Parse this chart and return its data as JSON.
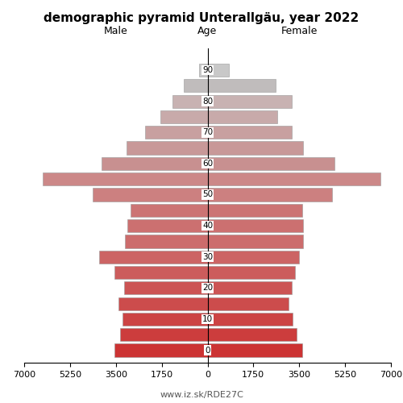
{
  "title": "demographic pyramid Unterallgäu, year 2022",
  "ages": [
    0,
    5,
    10,
    15,
    20,
    25,
    30,
    35,
    40,
    45,
    50,
    55,
    60,
    65,
    70,
    75,
    80,
    85,
    90
  ],
  "male": [
    3550,
    3350,
    3250,
    3400,
    3200,
    3550,
    4150,
    3150,
    3050,
    2950,
    4400,
    6300,
    4050,
    3100,
    2400,
    1800,
    1350,
    900,
    320
  ],
  "female": [
    3600,
    3400,
    3250,
    3100,
    3200,
    3350,
    3500,
    3650,
    3650,
    3600,
    4750,
    6600,
    4850,
    3650,
    3200,
    2650,
    3200,
    2600,
    820
  ],
  "xlim": 7000,
  "xlabel_male": "Male",
  "xlabel_female": "Female",
  "age_label": "Age",
  "footnote": "www.iz.sk/RDE27C",
  "age_colors": [
    "#cc3333",
    "#cc3d3d",
    "#cc4444",
    "#cc4c4c",
    "#cc5454",
    "#cc5c5c",
    "#cc6464",
    "#cc6c6c",
    "#cc7070",
    "#cc7474",
    "#cc8080",
    "#cc8888",
    "#c89090",
    "#c89898",
    "#c8a0a0",
    "#c8aaaa",
    "#c8b2b2",
    "#c0bcbc",
    "#c8c8c8"
  ],
  "bg_color": "#ffffff",
  "bar_edge_color": "#999999",
  "bar_edge_width": 0.4,
  "tick_label_size": 8,
  "title_fontsize": 11,
  "header_fontsize": 9,
  "footnote_fontsize": 8,
  "footnote_color": "#555555"
}
